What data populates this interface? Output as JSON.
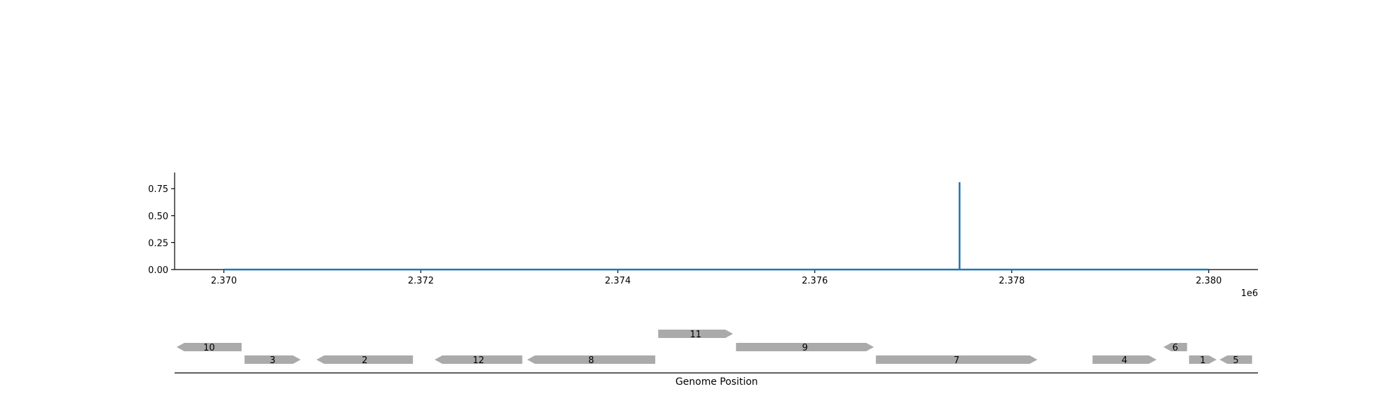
{
  "chart_data": {
    "type": "line",
    "title": "",
    "x_offset_label": "1e6",
    "xlabel": "Genome Position",
    "ylabel": "",
    "xlim": [
      2369500,
      2380500
    ],
    "ylim": [
      0,
      0.9
    ],
    "x_ticks": [
      2370000,
      2372000,
      2374000,
      2376000,
      2378000,
      2380000
    ],
    "x_tick_labels": [
      "2.370",
      "2.372",
      "2.374",
      "2.376",
      "2.378",
      "2.380"
    ],
    "y_ticks": [
      0,
      0.25,
      0.5,
      0.75
    ],
    "y_tick_labels": [
      "0.00",
      "0.25",
      "0.50",
      "0.75"
    ],
    "grid": false,
    "series": [
      {
        "color": "#1f77b4",
        "x": [
          2370000,
          2377470,
          2377470,
          2377470,
          2380000
        ],
        "y": [
          0.0,
          0.0,
          0.81,
          0.0,
          0.0
        ]
      }
    ],
    "gene_track": {
      "color": "#aaaaaa",
      "genes": [
        {
          "label": "10",
          "start": 2369520,
          "end": 2370180,
          "strand": "-",
          "row": 1
        },
        {
          "label": "3",
          "start": 2370210,
          "end": 2370780,
          "strand": "+",
          "row": 0
        },
        {
          "label": "2",
          "start": 2370940,
          "end": 2371920,
          "strand": "-",
          "row": 0
        },
        {
          "label": "12",
          "start": 2372140,
          "end": 2373030,
          "strand": "-",
          "row": 0
        },
        {
          "label": "8",
          "start": 2373080,
          "end": 2374380,
          "strand": "-",
          "row": 0
        },
        {
          "label": "11",
          "start": 2374410,
          "end": 2375170,
          "strand": "+",
          "row": 2
        },
        {
          "label": "9",
          "start": 2375200,
          "end": 2376600,
          "strand": "+",
          "row": 1
        },
        {
          "label": "7",
          "start": 2376620,
          "end": 2378260,
          "strand": "+",
          "row": 0
        },
        {
          "label": "4",
          "start": 2378820,
          "end": 2379470,
          "strand": "+",
          "row": 0
        },
        {
          "label": "6",
          "start": 2379540,
          "end": 2379780,
          "strand": "-",
          "row": 1
        },
        {
          "label": "1",
          "start": 2379800,
          "end": 2380080,
          "strand": "+",
          "row": 0
        },
        {
          "label": "5",
          "start": 2380110,
          "end": 2380440,
          "strand": "-",
          "row": 0
        }
      ]
    }
  }
}
